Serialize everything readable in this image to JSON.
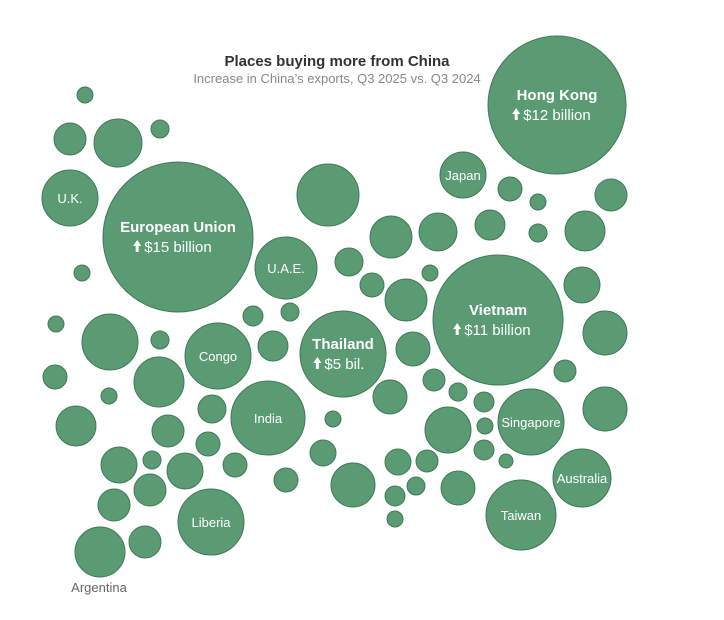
{
  "chart_data": {
    "type": "bubble",
    "title": "Places buying more from China",
    "subtitle": "Increase in China’s exports, Q3 2025 vs. Q3 2024",
    "colors": {
      "bubble": "#5a9b73",
      "stroke": "#3f7b55"
    },
    "labeled": [
      {
        "name": "European Union",
        "value_label": "$15 billion",
        "value": 15
      },
      {
        "name": "Hong Kong",
        "value_label": "$12 billion",
        "value": 12
      },
      {
        "name": "Vietnam",
        "value_label": "$11 billion",
        "value": 11
      },
      {
        "name": "Thailand",
        "value_label": "$5 bil.",
        "value": 5
      },
      {
        "name": "U.K."
      },
      {
        "name": "U.A.E."
      },
      {
        "name": "Japan"
      },
      {
        "name": "Congo"
      },
      {
        "name": "India"
      },
      {
        "name": "Singapore"
      },
      {
        "name": "Australia"
      },
      {
        "name": "Taiwan"
      },
      {
        "name": "Liberia"
      },
      {
        "name": "Argentina"
      }
    ]
  }
}
